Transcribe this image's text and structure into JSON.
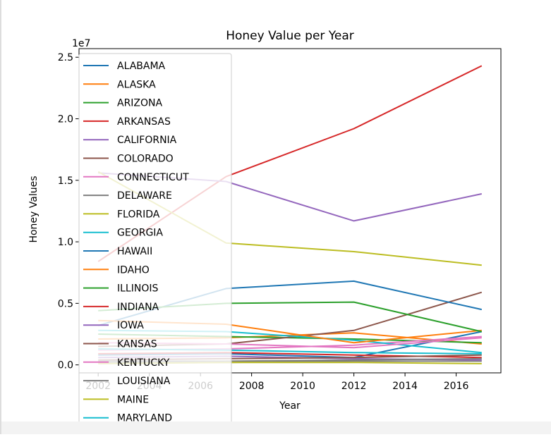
{
  "chart_data": {
    "type": "line",
    "title": "Honey Value per Year",
    "xlabel": "Year",
    "ylabel": "Honey Values",
    "y_offset_label": "1e7",
    "x_ticks": [
      "2002",
      "2004",
      "2006",
      "2008",
      "2010",
      "2012",
      "2014",
      "2016"
    ],
    "y_ticks": [
      "0.0",
      "0.5",
      "1.0",
      "1.5",
      "2.0",
      "2.5"
    ],
    "xlim": [
      2001.25,
      2017.75
    ],
    "ylim": [
      -650000,
      25700000
    ],
    "grid": false,
    "legend_position": "upper-left",
    "x": [
      2002,
      2007,
      2012,
      2017
    ],
    "series": [
      {
        "name": "ALABAMA",
        "color": "#1f77b4",
        "values": [
          800000,
          900000,
          600000,
          2700000
        ]
      },
      {
        "name": "ALASKA",
        "color": "#ff7f0e",
        "values": [
          2100000,
          2200000,
          2600000,
          1700000
        ]
      },
      {
        "name": "ARIZONA",
        "color": "#2ca02c",
        "values": [
          2500000,
          2300000,
          2100000,
          1800000
        ]
      },
      {
        "name": "ARKANSAS",
        "color": "#d62728",
        "values": [
          8400000,
          15300000,
          19200000,
          24300000
        ]
      },
      {
        "name": "CALIFORNIA",
        "color": "#9467bd",
        "values": [
          15600000,
          14900000,
          11700000,
          13900000
        ]
      },
      {
        "name": "COLORADO",
        "color": "#8c564b",
        "values": [
          1500000,
          1700000,
          2800000,
          5900000
        ]
      },
      {
        "name": "CONNECTICUT",
        "color": "#e377c2",
        "values": [
          1200000,
          1300000,
          1600000,
          2300000
        ]
      },
      {
        "name": "DELAWARE",
        "color": "#7f7f7f",
        "values": [
          200000,
          200000,
          300000,
          300000
        ]
      },
      {
        "name": "FLORIDA",
        "color": "#bcbd22",
        "values": [
          15700000,
          9900000,
          9200000,
          8100000
        ]
      },
      {
        "name": "GEORGIA",
        "color": "#17becf",
        "values": [
          2800000,
          2700000,
          2000000,
          1000000
        ]
      },
      {
        "name": "HAWAII",
        "color": "#1f77b4",
        "values": [
          3200000,
          6200000,
          6800000,
          4500000
        ]
      },
      {
        "name": "IDAHO",
        "color": "#ff7f0e",
        "values": [
          3600000,
          3300000,
          1800000,
          2800000
        ]
      },
      {
        "name": "ILLINOIS",
        "color": "#2ca02c",
        "values": [
          4400000,
          5000000,
          5100000,
          2700000
        ]
      },
      {
        "name": "INDIANA",
        "color": "#d62728",
        "values": [
          900000,
          1000000,
          800000,
          600000
        ]
      },
      {
        "name": "IOWA",
        "color": "#9467bd",
        "values": [
          600000,
          700000,
          500000,
          400000
        ]
      },
      {
        "name": "KANSAS",
        "color": "#8c564b",
        "values": [
          400000,
          500000,
          600000,
          800000
        ]
      },
      {
        "name": "KENTUCKY",
        "color": "#e377c2",
        "values": [
          1800000,
          1700000,
          1400000,
          2200000
        ]
      },
      {
        "name": "LOUISIANA",
        "color": "#7f7f7f",
        "values": [
          300000,
          300000,
          400000,
          500000
        ]
      },
      {
        "name": "MAINE",
        "color": "#bcbd22",
        "values": [
          100000,
          200000,
          200000,
          100000
        ]
      },
      {
        "name": "MARYLAND",
        "color": "#17becf",
        "values": [
          1300000,
          1200000,
          1000000,
          900000
        ]
      }
    ]
  }
}
